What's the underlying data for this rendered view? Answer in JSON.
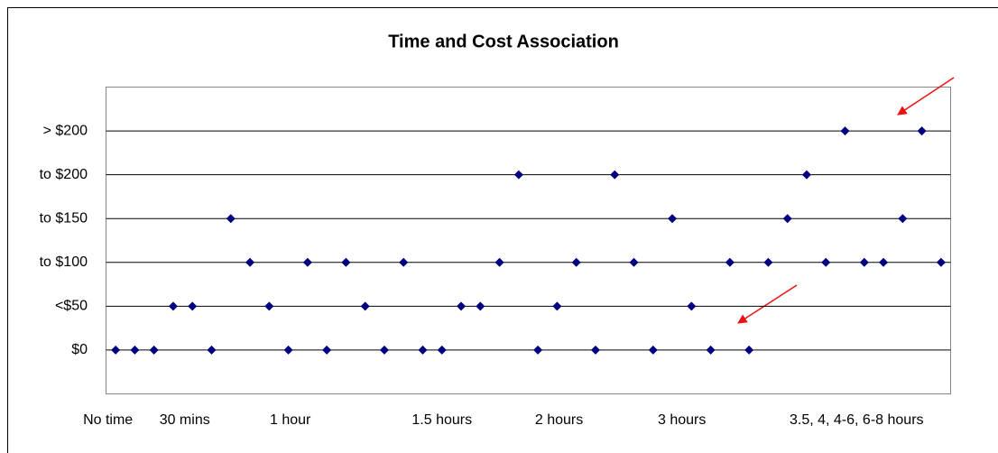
{
  "chart_data": {
    "type": "scatter",
    "title": "Time and Cost Association",
    "x": [
      1,
      2,
      3,
      4,
      5,
      6,
      7,
      8,
      9,
      10,
      11,
      12,
      13,
      14,
      15,
      16,
      17,
      18,
      19,
      20,
      21,
      22,
      23,
      24,
      25,
      26,
      27,
      28,
      29,
      30,
      31,
      32,
      33,
      34,
      35,
      36,
      37,
      38,
      39,
      40,
      41,
      42,
      43,
      44
    ],
    "values": [
      0,
      0,
      0,
      1,
      1,
      0,
      3,
      2,
      1,
      0,
      2,
      0,
      2,
      1,
      0,
      2,
      0,
      0,
      1,
      1,
      2,
      4,
      0,
      1,
      2,
      0,
      4,
      2,
      0,
      3,
      1,
      0,
      2,
      0,
      2,
      3,
      4,
      2,
      5,
      2,
      2,
      3,
      5,
      2
    ],
    "color": "#000080",
    "xlim": [
      0.5,
      44.5
    ],
    "xticks": [
      {
        "value": 0.6,
        "label": "No time"
      },
      {
        "value": 4.6,
        "label": "30 mins"
      },
      {
        "value": 10.1,
        "label": "1 hour"
      },
      {
        "value": 18,
        "label": "1.5 hours"
      },
      {
        "value": 24.1,
        "label": "2 hours"
      },
      {
        "value": 30.5,
        "label": "3 hours"
      },
      {
        "value": 39.6,
        "label": "3.5, 4, 4-6, 6-8 hours"
      }
    ],
    "ylim": [
      -1,
      6
    ],
    "yticks": [
      {
        "value": 0,
        "label": "$0"
      },
      {
        "value": 1,
        "label": "<$50"
      },
      {
        "value": 2,
        "label": "to $100"
      },
      {
        "value": 3,
        "label": "to $150"
      },
      {
        "value": 4,
        "label": "to $200"
      },
      {
        "value": 5,
        "label": "> $200"
      }
    ],
    "grid": true
  }
}
